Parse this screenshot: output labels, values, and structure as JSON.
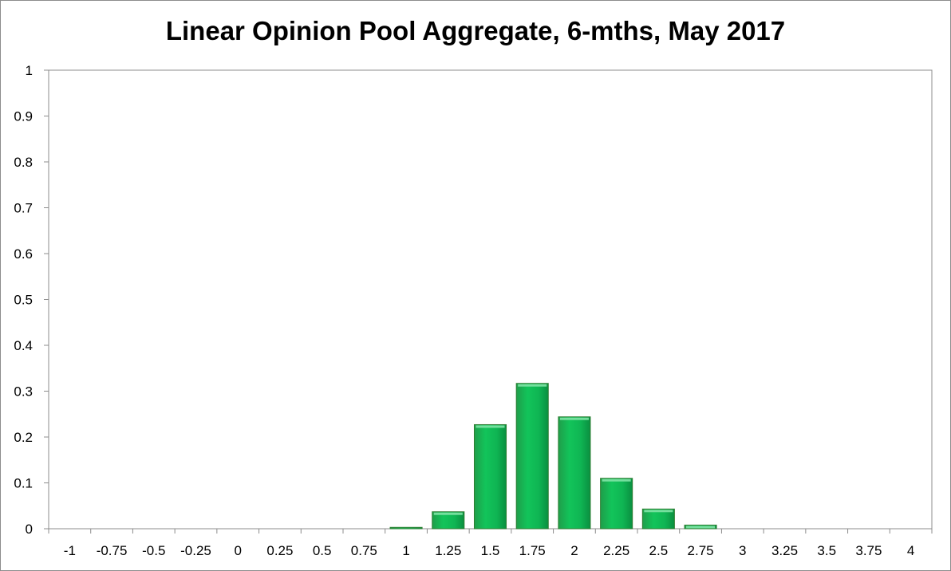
{
  "chart_data": {
    "type": "bar",
    "title": "Linear Opinion Pool Aggregate, 6-mths, May 2017",
    "xlabel": "",
    "ylabel": "",
    "categories": [
      "-1",
      "-0.75",
      "-0.5",
      "-0.25",
      "0",
      "0.25",
      "0.5",
      "0.75",
      "1",
      "1.25",
      "1.5",
      "1.75",
      "2",
      "2.25",
      "2.5",
      "2.75",
      "3",
      "3.25",
      "3.5",
      "3.75",
      "4"
    ],
    "values": [
      0,
      0,
      0,
      0,
      0,
      0,
      0,
      0,
      0.003,
      0.037,
      0.227,
      0.317,
      0.244,
      0.11,
      0.043,
      0.008,
      0,
      0,
      0,
      0,
      0
    ],
    "ylim": [
      0,
      1
    ],
    "yticks": [
      "0",
      "0.1",
      "0.2",
      "0.3",
      "0.4",
      "0.5",
      "0.6",
      "0.7",
      "0.8",
      "0.9",
      "1"
    ],
    "grid": false,
    "legend": "none",
    "bar_color": "#00b050",
    "bar_edge_color": "#2e7d32"
  }
}
